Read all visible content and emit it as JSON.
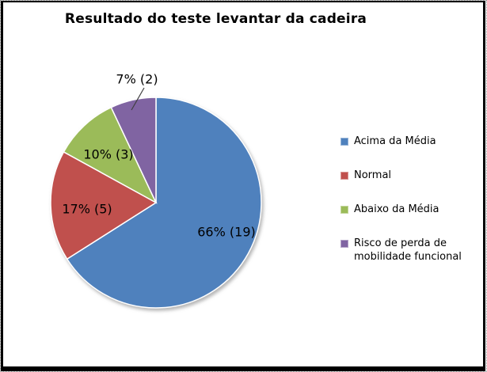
{
  "chart_data": {
    "type": "pie",
    "title": "Resultado do teste levantar da cadeira",
    "legend_position": "right",
    "start_angle_deg": 0,
    "direction": "clockwise",
    "slices": [
      {
        "name": "Acima da Média",
        "count": 19,
        "percent": 66,
        "label": "66% (19)",
        "color": "#4F81BD"
      },
      {
        "name": "Normal",
        "count": 5,
        "percent": 17,
        "label": "17% (5)",
        "color": "#C0504D"
      },
      {
        "name": "Abaixo da Média",
        "count": 3,
        "percent": 10,
        "label": "10% (3)",
        "color": "#9BBB59"
      },
      {
        "name": "Risco de perda de mobilidade funcional",
        "count": 2,
        "percent": 7,
        "label": "7% (2)",
        "color": "#8064A2"
      }
    ]
  }
}
